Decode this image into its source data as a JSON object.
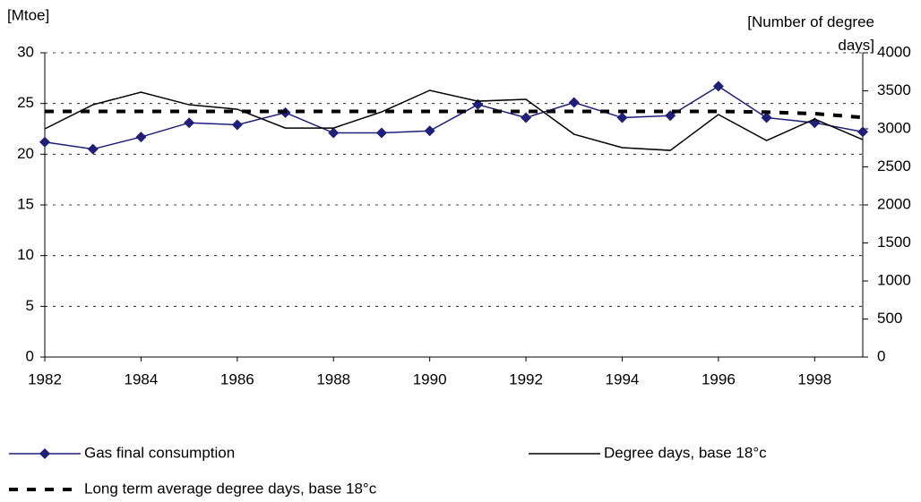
{
  "chart_data": {
    "type": "line",
    "y_label": "[Mtoe]",
    "y2_label": "[Number of degree days]",
    "x": [
      1982,
      1983,
      1984,
      1985,
      1986,
      1987,
      1988,
      1989,
      1990,
      1991,
      1992,
      1993,
      1994,
      1995,
      1996,
      1997,
      1998,
      1999
    ],
    "xlim": [
      1982,
      1999
    ],
    "xticks": [
      1982,
      1984,
      1986,
      1988,
      1990,
      1992,
      1994,
      1996,
      1998
    ],
    "ylim": [
      0,
      30
    ],
    "yticks": [
      0,
      5,
      10,
      15,
      20,
      25,
      30
    ],
    "y2lim": [
      0,
      4000
    ],
    "y2ticks": [
      0,
      500,
      1000,
      1500,
      2000,
      2500,
      3000,
      3500,
      4000
    ],
    "grid": true,
    "series": [
      {
        "name": "Gas final consumption",
        "color": "#1f1f7a",
        "marker": "diamond",
        "values": [
          21.2,
          20.5,
          21.7,
          23.1,
          22.9,
          24.1,
          22.1,
          22.1,
          22.3,
          24.9,
          23.6,
          25.1,
          23.6,
          23.8,
          26.7,
          23.6,
          23.1,
          22.2
        ]
      },
      {
        "name": "Degree days, base 18°c",
        "color": "#000000",
        "axis": "y2",
        "values": [
          3000,
          3317,
          3482,
          3317,
          3258,
          3011,
          3011,
          3223,
          3506,
          3364,
          3388,
          2929,
          2753,
          2717,
          3188,
          2847,
          3129,
          2858
        ]
      },
      {
        "name": "Long term average degree days, base 18°c",
        "color": "#000000",
        "axis": "y2",
        "dashed": true,
        "values": [
          3230,
          3230,
          3230,
          3230,
          3230,
          3230,
          3230,
          3230,
          3230,
          3230,
          3230,
          3230,
          3230,
          3230,
          3230,
          3220,
          3200,
          3150
        ]
      }
    ]
  }
}
